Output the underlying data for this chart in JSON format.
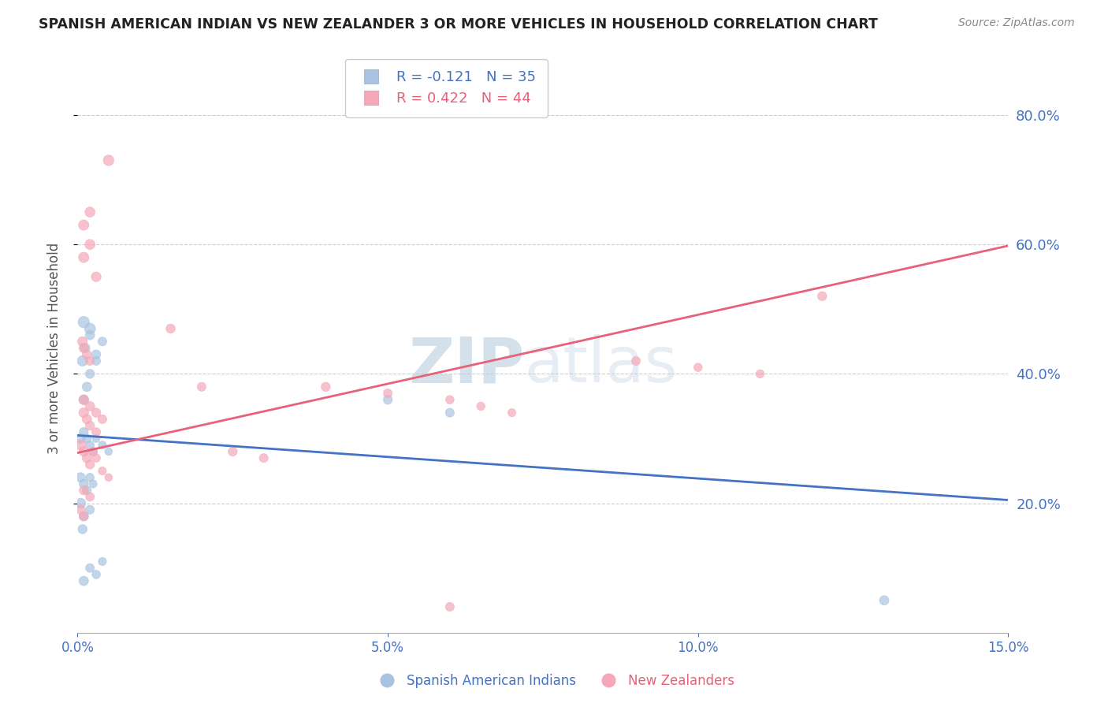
{
  "title": "SPANISH AMERICAN INDIAN VS NEW ZEALANDER 3 OR MORE VEHICLES IN HOUSEHOLD CORRELATION CHART",
  "source": "Source: ZipAtlas.com",
  "ylabel": "3 or more Vehicles in Household",
  "xmin": 0.0,
  "xmax": 0.15,
  "ymin": 0.0,
  "ymax": 0.88,
  "yticks": [
    0.2,
    0.4,
    0.6,
    0.8
  ],
  "ytick_labels": [
    "20.0%",
    "40.0%",
    "60.0%",
    "80.0%"
  ],
  "xticks": [
    0.0,
    0.05,
    0.1,
    0.15
  ],
  "xtick_labels": [
    "0.0%",
    "5.0%",
    "10.0%",
    "15.0%"
  ],
  "legend_entry1": "R = -0.121   N = 35",
  "legend_entry2": "R = 0.422   N = 44",
  "watermark_zip": "ZIP",
  "watermark_atlas": "atlas",
  "blue_color": "#A8C4E0",
  "pink_color": "#F4A8B8",
  "blue_line_color": "#4472C4",
  "pink_line_color": "#E8607A",
  "blue_label_color": "#4472C4",
  "series_blue": {
    "name": "Spanish American Indians",
    "x": [
      0.0005,
      0.001,
      0.0015,
      0.002,
      0.0025,
      0.003,
      0.004,
      0.005,
      0.0008,
      0.0012,
      0.002,
      0.003,
      0.004,
      0.001,
      0.0015,
      0.002,
      0.003,
      0.001,
      0.002,
      0.0005,
      0.001,
      0.0015,
      0.002,
      0.0025,
      0.001,
      0.002,
      0.003,
      0.004,
      0.0005,
      0.001,
      0.002,
      0.05,
      0.06,
      0.13,
      0.0008
    ],
    "y": [
      0.3,
      0.31,
      0.3,
      0.29,
      0.28,
      0.3,
      0.29,
      0.28,
      0.42,
      0.44,
      0.46,
      0.43,
      0.45,
      0.36,
      0.38,
      0.4,
      0.42,
      0.48,
      0.47,
      0.24,
      0.23,
      0.22,
      0.24,
      0.23,
      0.08,
      0.1,
      0.09,
      0.11,
      0.2,
      0.18,
      0.19,
      0.36,
      0.34,
      0.05,
      0.16
    ],
    "sizes": [
      80,
      70,
      65,
      60,
      55,
      50,
      55,
      50,
      90,
      80,
      75,
      70,
      65,
      80,
      75,
      70,
      65,
      110,
      100,
      75,
      70,
      65,
      60,
      55,
      75,
      65,
      60,
      55,
      85,
      75,
      65,
      70,
      65,
      75,
      70
    ]
  },
  "series_pink": {
    "name": "New Zealanders",
    "x": [
      0.0005,
      0.001,
      0.0015,
      0.002,
      0.0025,
      0.003,
      0.004,
      0.005,
      0.001,
      0.0015,
      0.002,
      0.003,
      0.001,
      0.002,
      0.003,
      0.004,
      0.001,
      0.002,
      0.003,
      0.001,
      0.002,
      0.0008,
      0.001,
      0.0015,
      0.002,
      0.001,
      0.002,
      0.0005,
      0.001,
      0.04,
      0.05,
      0.06,
      0.065,
      0.07,
      0.09,
      0.1,
      0.11,
      0.12,
      0.025,
      0.03,
      0.015,
      0.02,
      0.06,
      0.005
    ],
    "y": [
      0.29,
      0.28,
      0.27,
      0.26,
      0.28,
      0.27,
      0.25,
      0.24,
      0.34,
      0.33,
      0.32,
      0.31,
      0.36,
      0.35,
      0.34,
      0.33,
      0.58,
      0.6,
      0.55,
      0.22,
      0.21,
      0.45,
      0.44,
      0.43,
      0.42,
      0.63,
      0.65,
      0.19,
      0.18,
      0.38,
      0.37,
      0.36,
      0.35,
      0.34,
      0.42,
      0.41,
      0.4,
      0.52,
      0.28,
      0.27,
      0.47,
      0.38,
      0.04,
      0.73
    ],
    "sizes": [
      90,
      80,
      75,
      70,
      65,
      60,
      55,
      50,
      80,
      75,
      70,
      65,
      80,
      75,
      70,
      65,
      90,
      85,
      80,
      70,
      65,
      80,
      75,
      70,
      65,
      90,
      85,
      75,
      70,
      70,
      65,
      60,
      58,
      55,
      65,
      60,
      58,
      70,
      70,
      65,
      70,
      65,
      65,
      95
    ]
  },
  "blue_line_x": [
    0.0,
    0.15
  ],
  "blue_line_y": [
    0.305,
    0.205
  ],
  "pink_line_x": [
    0.0,
    0.15
  ],
  "pink_line_y": [
    0.278,
    0.598
  ]
}
